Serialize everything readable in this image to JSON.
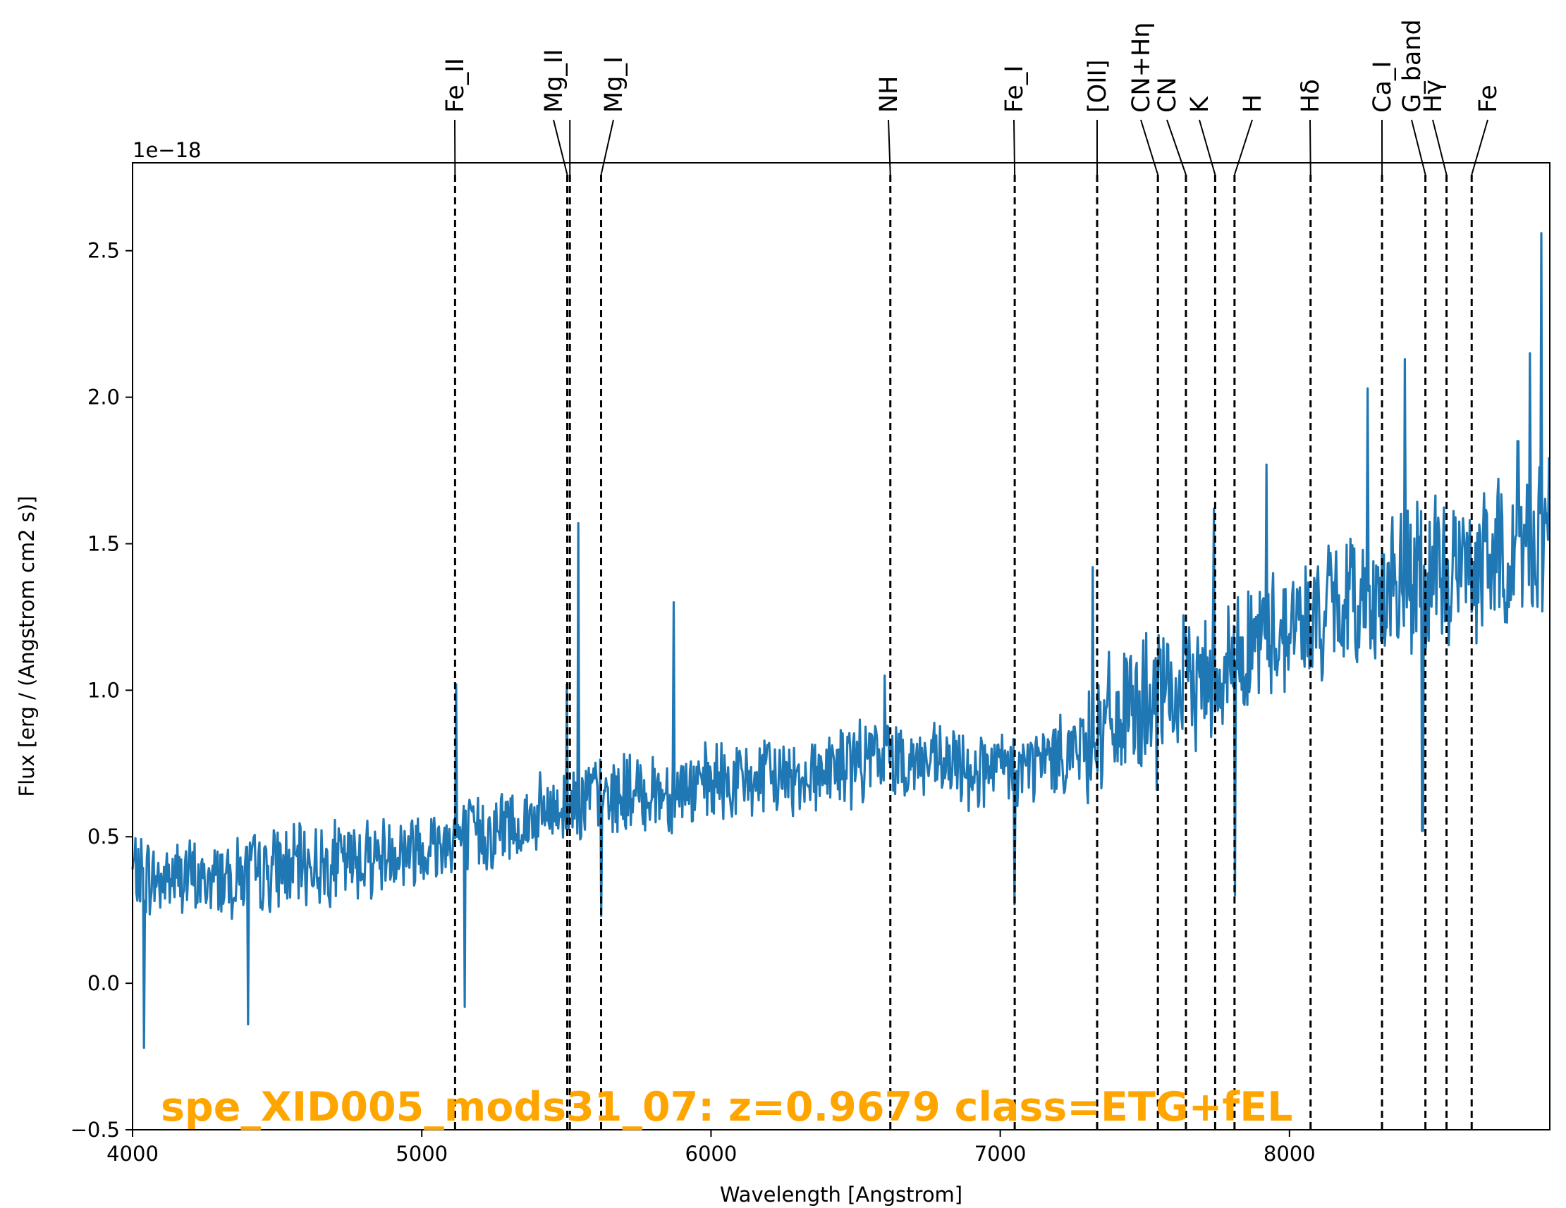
{
  "chart_data": {
    "type": "line",
    "xlabel": "Wavelength [Angstrom]",
    "ylabel": "Flux [erg / (Angstrom cm2 s)]",
    "y_offset_label": "1e−18",
    "xlim": [
      4000,
      8900
    ],
    "ylim": [
      -0.5,
      2.8
    ],
    "x_ticks": [
      4000,
      5000,
      6000,
      7000,
      8000
    ],
    "x_tick_labels": [
      "4000",
      "5000",
      "6000",
      "7000",
      "8000"
    ],
    "y_ticks": [
      -0.5,
      0.0,
      0.5,
      1.0,
      1.5,
      2.0,
      2.5
    ],
    "y_tick_labels": [
      "−0.5",
      "0.0",
      "0.5",
      "1.0",
      "1.5",
      "2.0",
      "2.5"
    ],
    "grid": false,
    "annotation": "spe_XID005_mods31_07: z=0.9679 class=ETG+fEL",
    "colors": {
      "spectrum": "#1f77b4",
      "annotation": "#ffa500",
      "lines": "#000000"
    },
    "series": [
      {
        "x": [
          4000,
          4050,
          4100,
          4150,
          4200,
          4250,
          4300,
          4350,
          4400,
          4450,
          4500,
          4550,
          4600,
          4650,
          4700,
          4750,
          4800,
          4850,
          4900,
          4950,
          5000,
          5050,
          5100,
          5150,
          5200,
          5250,
          5300,
          5350,
          5400,
          5450,
          5500,
          5550,
          5600,
          5650,
          5700,
          5750,
          5800,
          5850,
          5900,
          5950,
          6000,
          6100,
          6200,
          6300,
          6400,
          6500,
          6600,
          6700,
          6800,
          6900,
          7000,
          7100,
          7200,
          7300,
          7400,
          7500,
          7600,
          7700,
          7800,
          7900,
          8000,
          8100,
          8200,
          8300,
          8400,
          8500,
          8600,
          8700,
          8800,
          8900
        ],
        "values": [
          0.38,
          0.36,
          0.35,
          0.37,
          0.36,
          0.34,
          0.37,
          0.36,
          0.38,
          0.37,
          0.4,
          0.39,
          0.41,
          0.4,
          0.42,
          0.41,
          0.44,
          0.43,
          0.46,
          0.45,
          0.48,
          0.47,
          0.5,
          0.49,
          0.52,
          0.51,
          0.55,
          0.54,
          0.57,
          0.58,
          0.62,
          0.63,
          0.64,
          0.63,
          0.65,
          0.64,
          0.66,
          0.65,
          0.67,
          0.66,
          0.68,
          0.69,
          0.7,
          0.71,
          0.73,
          0.75,
          0.78,
          0.76,
          0.74,
          0.73,
          0.72,
          0.74,
          0.78,
          0.82,
          0.9,
          0.95,
          0.98,
          1.05,
          1.1,
          1.18,
          1.22,
          1.26,
          1.3,
          1.32,
          1.35,
          1.38,
          1.42,
          1.45,
          1.48,
          1.55
        ]
      }
    ],
    "spikes": [
      {
        "x": 5120,
        "y": 1.02
      },
      {
        "x": 5150,
        "y": -0.08
      },
      {
        "x": 4040,
        "y": -0.22
      },
      {
        "x": 4400,
        "y": -0.14
      },
      {
        "x": 5500,
        "y": 1.02
      },
      {
        "x": 5540,
        "y": 1.57
      },
      {
        "x": 5870,
        "y": 1.3
      },
      {
        "x": 5620,
        "y": 0.23
      },
      {
        "x": 6600,
        "y": 1.05
      },
      {
        "x": 7050,
        "y": 0.27
      },
      {
        "x": 7320,
        "y": 1.42
      },
      {
        "x": 7540,
        "y": 0.66
      },
      {
        "x": 7740,
        "y": 1.62
      },
      {
        "x": 7810,
        "y": 0.3
      },
      {
        "x": 7920,
        "y": 1.77
      },
      {
        "x": 8080,
        "y": 1.08
      },
      {
        "x": 8270,
        "y": 2.03
      },
      {
        "x": 8400,
        "y": 2.13
      },
      {
        "x": 8460,
        "y": 0.52
      },
      {
        "x": 8830,
        "y": 2.15
      },
      {
        "x": 8870,
        "y": 2.56
      },
      {
        "x": 8790,
        "y": 1.85
      }
    ],
    "spectral_lines": [
      {
        "name": "Fe_II",
        "x": 5115
      },
      {
        "name": "Mg_II",
        "x": 5503
      },
      {
        "name": "",
        "x": 5512
      },
      {
        "name": "Mg_I",
        "x": 5620
      },
      {
        "name": "NH",
        "x": 6620
      },
      {
        "name": "Fe_I",
        "x": 7050
      },
      {
        "name": "[OII]",
        "x": 7335
      },
      {
        "name": "CN+Hη",
        "x": 7545
      },
      {
        "name": "CN",
        "x": 7642
      },
      {
        "name": "K",
        "x": 7743
      },
      {
        "name": "H",
        "x": 7810
      },
      {
        "name": "Hδ",
        "x": 8073
      },
      {
        "name": "Ca_I",
        "x": 8320
      },
      {
        "name": "G_band",
        "x": 8470
      },
      {
        "name": "Hγ",
        "x": 8543
      },
      {
        "name": "Fe",
        "x": 8630
      }
    ]
  }
}
